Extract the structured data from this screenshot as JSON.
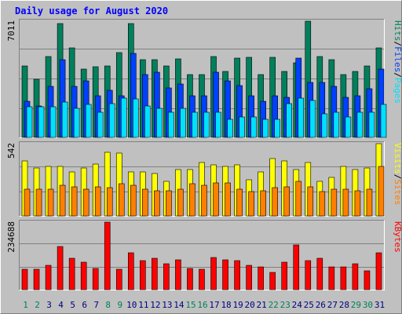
{
  "title": "Daily usage for August 2020",
  "chart_data": {
    "type": "bar",
    "title": "Daily usage for August 2020",
    "categories": [
      "1",
      "2",
      "3",
      "4",
      "5",
      "6",
      "7",
      "8",
      "9",
      "10",
      "11",
      "12",
      "13",
      "14",
      "15",
      "16",
      "17",
      "18",
      "19",
      "20",
      "21",
      "22",
      "23",
      "24",
      "25",
      "26",
      "27",
      "28",
      "29",
      "30",
      "31"
    ],
    "weekend_days": [
      "1",
      "2",
      "8",
      "9",
      "15",
      "16",
      "22",
      "23",
      "29",
      "30"
    ],
    "panels": [
      {
        "id": "hits",
        "ymax_label": "7011",
        "ylim": [
          0,
          7011
        ],
        "right_label_parts": [
          "Pages",
          "Files",
          "Hits"
        ],
        "series": [
          {
            "name": "Hits",
            "color": "#00805c",
            "values": [
              4300,
              3500,
              4870,
              6850,
              5400,
              4100,
              4250,
              4300,
              5100,
              6850,
              4700,
              4700,
              4300,
              4750,
              3800,
              3800,
              4900,
              4000,
              4800,
              4850,
              3800,
              4850,
              4000,
              4500,
              7000,
              4900,
              4700,
              3800,
              4000,
              4300,
              5400
            ]
          },
          {
            "name": "Files",
            "color": "#0040ff",
            "values": [
              2200,
              1900,
              3100,
              4700,
              3100,
              3400,
              2500,
              2850,
              2500,
              5050,
              3800,
              3950,
              3000,
              3200,
              2500,
              2500,
              3950,
              3400,
              3150,
              2500,
              2200,
              2500,
              2400,
              4800,
              3300,
              3300,
              3100,
              2400,
              2500,
              2950,
              4100
            ]
          },
          {
            "name": "Pages",
            "color": "#00e0ff",
            "values": [
              1850,
              1850,
              1850,
              2150,
              1750,
              2000,
              1500,
              2050,
              2350,
              2300,
              1900,
              1750,
              1500,
              1750,
              1500,
              1500,
              1500,
              1100,
              1250,
              1250,
              1100,
              1100,
              2050,
              2350,
              2250,
              1400,
              1500,
              1250,
              1500,
              1500,
              2000
            ]
          }
        ]
      },
      {
        "id": "visits",
        "ymax_label": "542",
        "ylim": [
          0,
          542
        ],
        "right_label_parts": [
          "Sites",
          "Visits"
        ],
        "series": [
          {
            "name": "Visits",
            "color": "#ffff00",
            "values": [
              410,
              360,
              370,
              370,
              330,
              360,
              390,
              480,
              470,
              330,
              330,
              320,
              260,
              350,
              350,
              400,
              380,
              370,
              380,
              270,
              330,
              430,
              410,
              350,
              400,
              260,
              290,
              370,
              350,
              360,
              540
            ]
          },
          {
            "name": "Sites",
            "color": "#ff8000",
            "values": [
              200,
              200,
              200,
              230,
              220,
              200,
              220,
              210,
              240,
              230,
              200,
              190,
              190,
              200,
              240,
              230,
              250,
              250,
              200,
              180,
              190,
              210,
              220,
              260,
              220,
              180,
              200,
              200,
              190,
              200,
              370
            ]
          }
        ]
      },
      {
        "id": "kbytes",
        "ymax_label": "234688",
        "ylim": [
          0,
          234688
        ],
        "right_label_parts": [
          "KBytes"
        ],
        "series": [
          {
            "name": "KBytes",
            "color": "#ff0000",
            "values": [
              70000,
              70000,
              85000,
              150000,
              110000,
              95000,
              75000,
              234688,
              70000,
              128000,
              100000,
              110000,
              90000,
              105000,
              75000,
              70000,
              113000,
              105000,
              100000,
              85000,
              80000,
              60000,
              96000,
              155000,
              100000,
              110000,
              80000,
              80000,
              90000,
              65000,
              129000
            ]
          }
        ]
      }
    ]
  }
}
